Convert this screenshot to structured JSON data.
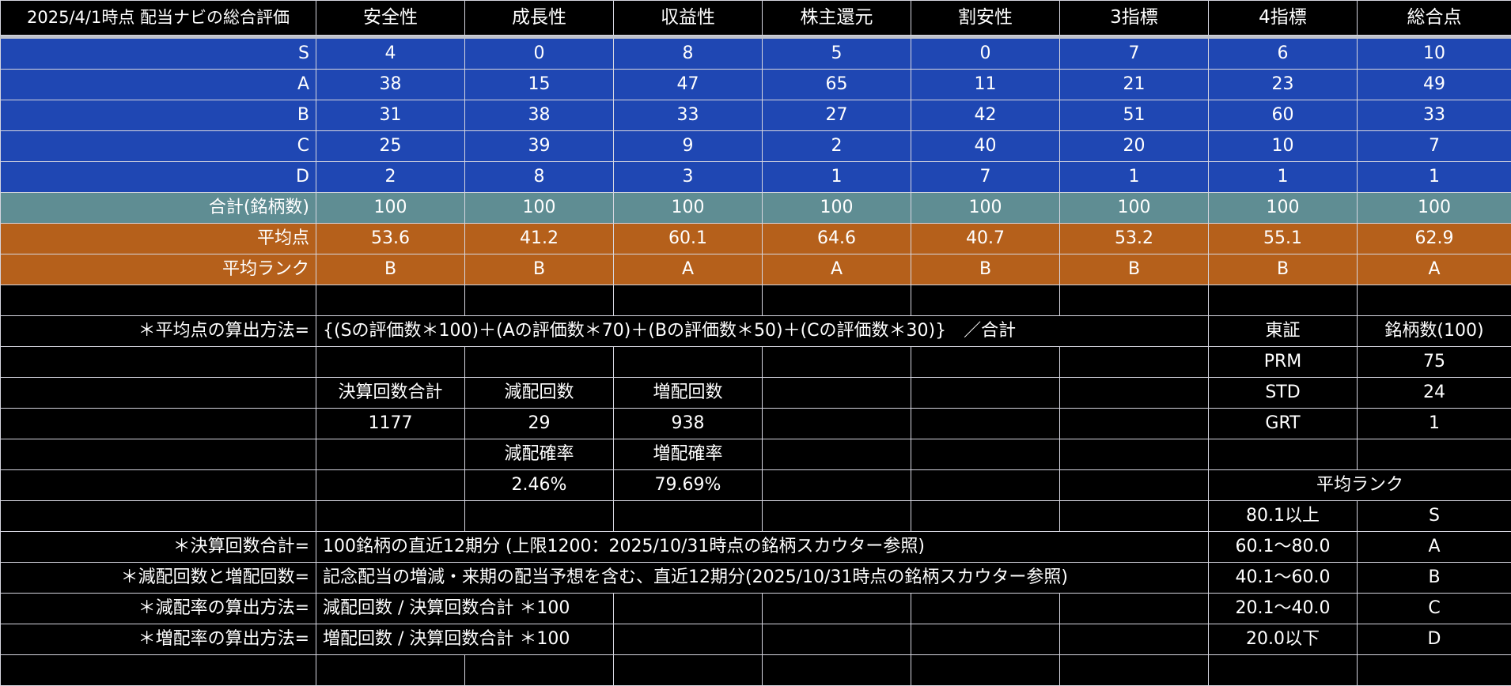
{
  "header": [
    "2025/4/1時点 配当ナビの総合評価",
    "安全性",
    "成長性",
    "収益性",
    "株主還元",
    "割安性",
    "3指標",
    "4指標",
    "総合点"
  ],
  "grades": [
    {
      "label": "S",
      "values": [
        "4",
        "0",
        "8",
        "5",
        "0",
        "7",
        "6",
        "10"
      ]
    },
    {
      "label": "A",
      "values": [
        "38",
        "15",
        "47",
        "65",
        "11",
        "21",
        "23",
        "49"
      ]
    },
    {
      "label": "B",
      "values": [
        "31",
        "38",
        "33",
        "27",
        "42",
        "51",
        "60",
        "33"
      ]
    },
    {
      "label": "C",
      "values": [
        "25",
        "39",
        "9",
        "2",
        "40",
        "20",
        "10",
        "7"
      ]
    },
    {
      "label": "D",
      "values": [
        "2",
        "8",
        "3",
        "1",
        "7",
        "1",
        "1",
        "1"
      ]
    }
  ],
  "total": {
    "label": "合計(銘柄数)",
    "values": [
      "100",
      "100",
      "100",
      "100",
      "100",
      "100",
      "100",
      "100"
    ]
  },
  "average": {
    "label": "平均点",
    "values": [
      "53.6",
      "41.2",
      "60.1",
      "64.6",
      "40.7",
      "53.2",
      "55.1",
      "62.9"
    ]
  },
  "avg_rank": {
    "label": "平均ランク",
    "values": [
      "B",
      "B",
      "A",
      "A",
      "B",
      "B",
      "B",
      "A"
    ]
  },
  "formula": {
    "label": "＊平均点の算出方法=",
    "text": "{(Sの評価数＊100)＋(Aの評価数＊70)＋(Bの評価数＊50)＋(Cの評価数＊30)}　／合計"
  },
  "market": {
    "header": [
      "東証",
      "銘柄数(100)"
    ],
    "rows": [
      [
        "PRM",
        "75"
      ],
      [
        "STD",
        "24"
      ],
      [
        "GRT",
        "1"
      ]
    ]
  },
  "settlement": {
    "labels": [
      "決算回数合計",
      "減配回数",
      "増配回数"
    ],
    "values": [
      "1177",
      "29",
      "938"
    ],
    "rate_labels": [
      "減配確率",
      "増配確率"
    ],
    "rate_values": [
      "2.46%",
      "79.69%"
    ]
  },
  "rank_table": {
    "title": "平均ランク",
    "rows": [
      [
        "80.1以上",
        "S"
      ],
      [
        "60.1〜80.0",
        "A"
      ],
      [
        "40.1〜60.0",
        "B"
      ],
      [
        "20.1〜40.0",
        "C"
      ],
      [
        "20.0以下",
        "D"
      ]
    ]
  },
  "notes": [
    {
      "label": "＊決算回数合計=",
      "text": "100銘柄の直近12期分 (上限1200：2025/10/31時点の銘柄スカウター参照)"
    },
    {
      "label": "＊減配回数と増配回数=",
      "text": "記念配当の増減・来期の配当予想を含む、直近12期分(2025/10/31時点の銘柄スカウター参照)"
    },
    {
      "label": "＊減配率の算出方法=",
      "text": "減配回数 / 決算回数合計 ＊100"
    },
    {
      "label": "＊増配率の算出方法=",
      "text": "増配回数 / 決算回数合計 ＊100"
    }
  ],
  "colors": {
    "grade_row": "#1f47b3",
    "total_row": "#5f8d93",
    "average_row": "#b5601b",
    "background": "#000000"
  }
}
